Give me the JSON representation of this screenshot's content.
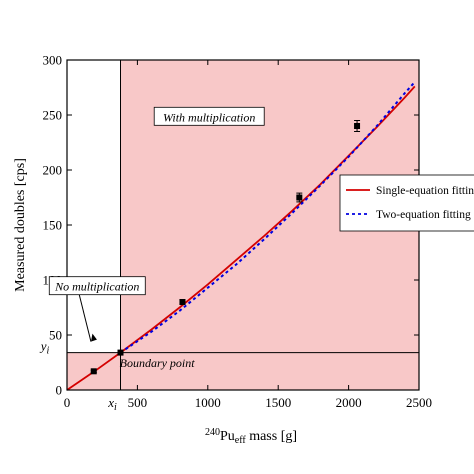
{
  "chart_data": {
    "type": "scatter",
    "xlabel": "mass [g]",
    "xlabel_prefix_sup": "240",
    "xlabel_main": "Pu",
    "xlabel_sub": "eff",
    "ylabel": "Measured doubles [cps]",
    "xlim": [
      0,
      2500
    ],
    "ylim": [
      0,
      300
    ],
    "x_ticks": [
      0,
      500,
      1000,
      1500,
      2000,
      2500
    ],
    "x_tick_labels": [
      "0",
      "500",
      "1000",
      "1500",
      "2000",
      "2500"
    ],
    "y_ticks": [
      0,
      50,
      100,
      150,
      200,
      250,
      300
    ],
    "y_tick_labels": [
      "0",
      "50",
      "100",
      "150",
      "200",
      "250",
      "300"
    ],
    "x_extra_label": "x",
    "x_extra_label_sub": "i",
    "y_extra_label": "y",
    "y_extra_label_sub": "i",
    "boundary": {
      "x": 380,
      "y": 34
    },
    "regions": [
      {
        "name": "no-multiplication",
        "x": [
          0,
          380
        ],
        "y": [
          0,
          34
        ],
        "color": "#f8c8c8"
      },
      {
        "name": "with-multiplication",
        "x": [
          380,
          2500
        ],
        "y": [
          0,
          300
        ],
        "color": "#f8c8c8"
      }
    ],
    "points": [
      {
        "x": 190,
        "y": 17,
        "err": 1
      },
      {
        "x": 380,
        "y": 34,
        "err": 1
      },
      {
        "x": 820,
        "y": 80,
        "err": 2
      },
      {
        "x": 1650,
        "y": 175,
        "err": 4
      },
      {
        "x": 2060,
        "y": 240,
        "err": 5
      }
    ],
    "series": [
      {
        "name": "Single-equation fitting",
        "color": "#d40000",
        "style": "solid",
        "x": [
          0,
          200,
          380,
          600,
          800,
          1000,
          1200,
          1400,
          1600,
          1800,
          2000,
          2200,
          2400,
          2470
        ],
        "y": [
          0,
          17.5,
          34,
          55,
          75,
          96,
          118,
          140,
          163,
          187,
          213,
          239,
          266,
          276
        ]
      },
      {
        "name": "Two-equation fitting",
        "color": "#0000e0",
        "style": "dotted",
        "x": [
          380,
          600,
          800,
          1000,
          1200,
          1400,
          1600,
          1800,
          2000,
          2200,
          2400,
          2470
        ],
        "y": [
          34,
          53,
          72,
          93,
          114,
          137,
          161,
          186,
          212,
          240,
          270,
          280
        ]
      }
    ],
    "annotations": [
      {
        "text": "With multiplication",
        "x": 1010,
        "y": 247
      },
      {
        "text": "No multiplication",
        "x": 215,
        "y": 93
      },
      {
        "text": "Boundary point",
        "x": 640,
        "y": 21
      }
    ],
    "legend_position": "right",
    "grid": false
  }
}
